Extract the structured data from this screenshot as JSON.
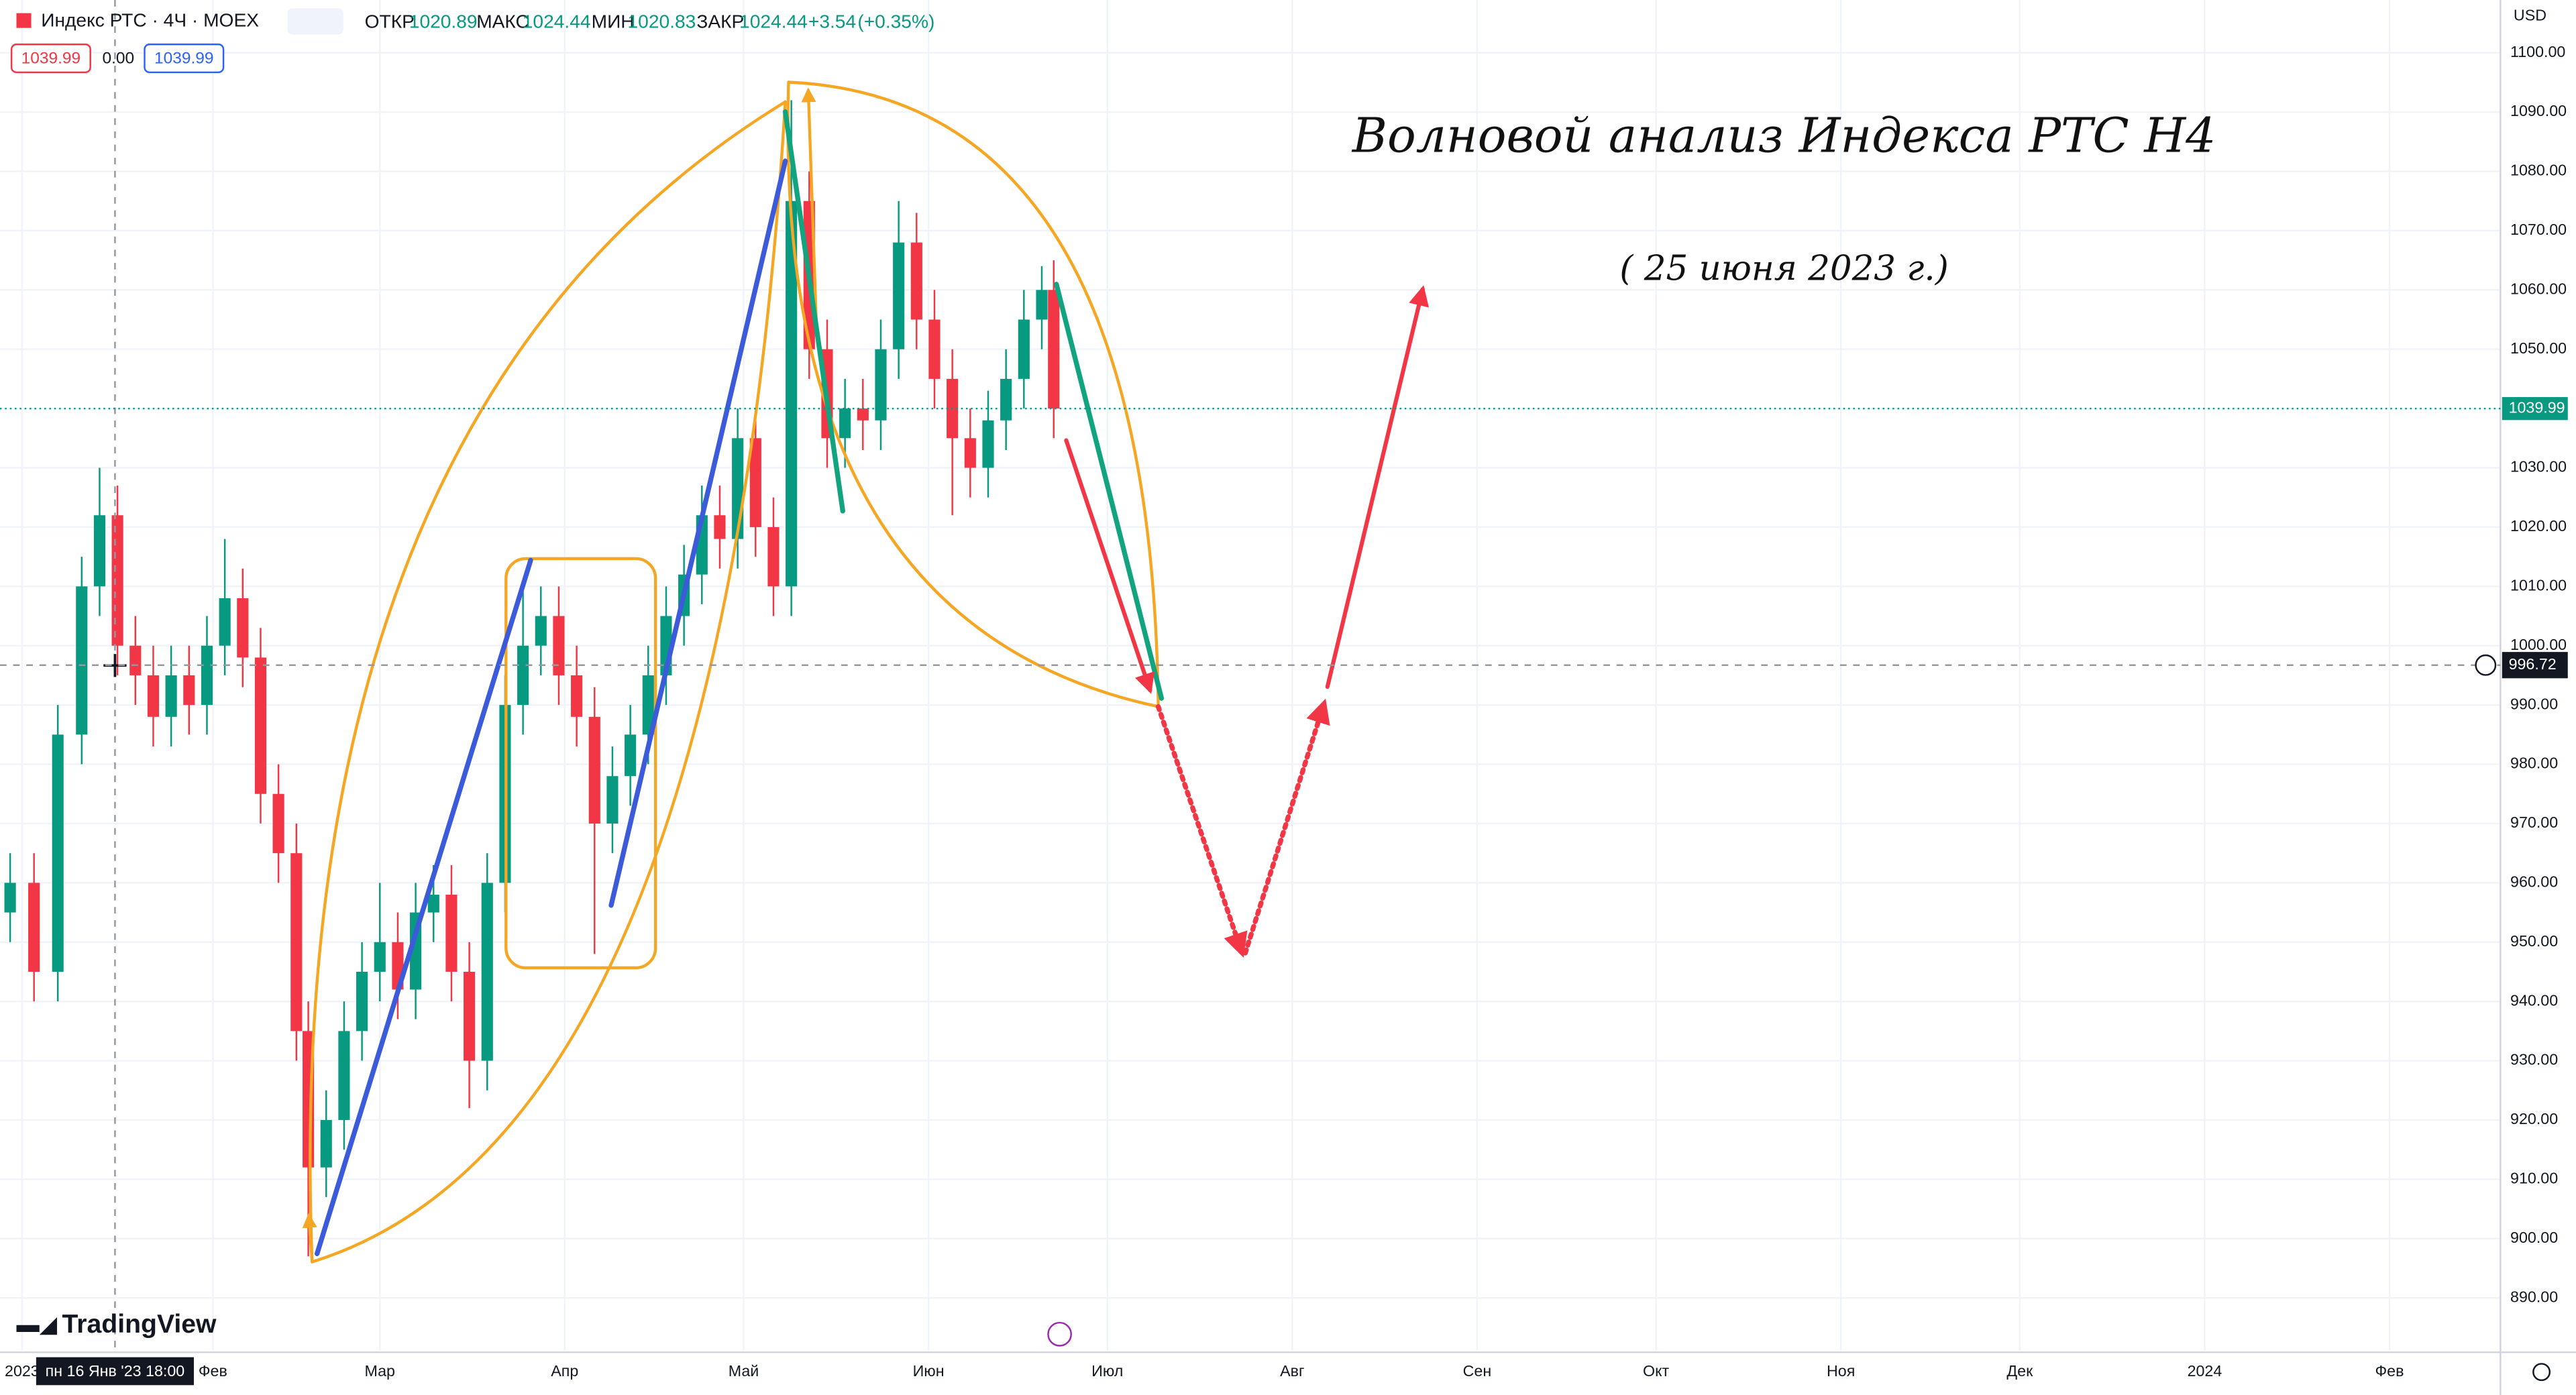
{
  "header": {
    "symbol": "Индекс РТС · 4Ч · MOEX",
    "open_label": "ОТКР",
    "open": 1020.89,
    "high_label": "МАКС",
    "high": 1024.44,
    "low_label": "МИН",
    "low": 1020.83,
    "close_label": "ЗАКР",
    "close": 1024.44,
    "change": "+3.54",
    "change_pct": "(+0.35%)",
    "sell": 1039.99,
    "spread": "0.00",
    "buy": 1039.99
  },
  "currency": "USD",
  "logo": "TradingView",
  "crosshair_time": "пн 16 Янв '23  18:00",
  "chart_data": {
    "type": "candlestick",
    "annotations": [
      "Волновой анализ Индекса РТС Н4",
      "( 25 июня 2023 г.)"
    ],
    "x": [
      -3,
      1,
      5,
      9,
      12,
      15,
      18,
      21,
      24,
      27,
      30,
      33,
      36,
      39,
      42,
      45,
      47,
      50,
      53,
      56,
      59,
      62,
      65,
      68,
      71,
      74,
      77,
      80,
      83,
      86,
      89,
      92,
      95,
      98,
      101,
      104,
      107,
      110,
      113,
      116,
      119,
      122,
      125,
      128,
      131,
      134,
      137,
      140,
      143,
      146,
      149,
      152,
      155,
      158,
      161,
      164,
      167,
      170,
      172
    ],
    "open": [
      955,
      960,
      945,
      985,
      1010,
      1022,
      1000,
      995,
      988,
      995,
      990,
      1000,
      1008,
      998,
      975,
      965,
      935,
      912,
      920,
      935,
      945,
      950,
      942,
      955,
      958,
      945,
      930,
      960,
      990,
      1000,
      1005,
      995,
      988,
      970,
      978,
      985,
      995,
      1005,
      1012,
      1022,
      1018,
      1035,
      1020,
      1010,
      1075,
      1050,
      1035,
      1040,
      1038,
      1050,
      1068,
      1055,
      1045,
      1035,
      1030,
      1038,
      1045,
      1055,
      1060
    ],
    "high": [
      965,
      965,
      990,
      1015,
      1030,
      1027,
      1005,
      1000,
      1000,
      1000,
      1005,
      1018,
      1013,
      1003,
      980,
      970,
      940,
      925,
      940,
      950,
      960,
      955,
      960,
      963,
      963,
      950,
      965,
      995,
      1010,
      1010,
      1010,
      1000,
      993,
      983,
      990,
      1000,
      1010,
      1017,
      1027,
      1027,
      1040,
      1040,
      1025,
      1092,
      1080,
      1055,
      1045,
      1045,
      1055,
      1075,
      1073,
      1060,
      1050,
      1040,
      1043,
      1050,
      1060,
      1064,
      1065
    ],
    "low": [
      950,
      940,
      940,
      980,
      1005,
      995,
      990,
      983,
      983,
      985,
      985,
      995,
      993,
      970,
      960,
      930,
      897,
      907,
      915,
      930,
      940,
      937,
      937,
      950,
      940,
      922,
      925,
      955,
      985,
      995,
      990,
      983,
      948,
      965,
      973,
      980,
      990,
      1000,
      1007,
      1013,
      1013,
      1015,
      1005,
      1005,
      1045,
      1030,
      1030,
      1033,
      1033,
      1045,
      1050,
      1040,
      1022,
      1025,
      1025,
      1033,
      1040,
      1050,
      1035
    ],
    "close": [
      960,
      945,
      985,
      1010,
      1022,
      1000,
      995,
      988,
      995,
      990,
      1000,
      1008,
      998,
      975,
      965,
      935,
      912,
      920,
      935,
      945,
      950,
      942,
      955,
      958,
      945,
      930,
      960,
      990,
      1000,
      1005,
      995,
      988,
      970,
      978,
      985,
      995,
      1005,
      1012,
      1022,
      1018,
      1035,
      1020,
      1010,
      1075,
      1050,
      1035,
      1040,
      1038,
      1050,
      1068,
      1055,
      1045,
      1035,
      1030,
      1038,
      1045,
      1055,
      1060,
      1040
    ],
    "up_color": "#089981",
    "down_color": "#f23645",
    "last_price": {
      "value": 1039.99,
      "label": "1039.99",
      "color": "#089981"
    },
    "crosshair_price": {
      "value": 996.72,
      "label": "996.72"
    },
    "xlim": [
      -4.7,
      414.6
    ],
    "xticks": [
      {
        "value": -1,
        "label": "2023"
      },
      {
        "value": 31,
        "label": "Фев"
      },
      {
        "value": 59,
        "label": "Мар"
      },
      {
        "value": 90,
        "label": "Апр"
      },
      {
        "value": 120,
        "label": "Май"
      },
      {
        "value": 151,
        "label": "Июн"
      },
      {
        "value": 181,
        "label": "Июл"
      },
      {
        "value": 212,
        "label": "Авг"
      },
      {
        "value": 243,
        "label": "Сен"
      },
      {
        "value": 273,
        "label": "Окт"
      },
      {
        "value": 304,
        "label": "Ноя"
      },
      {
        "value": 334,
        "label": "Дек"
      },
      {
        "value": 365,
        "label": "2024"
      },
      {
        "value": 396,
        "label": "Фев"
      }
    ],
    "ylim": [
      881.1,
      1108.9
    ],
    "yticks": [
      {
        "value": 890,
        "label": "890.00"
      },
      {
        "value": 900,
        "label": "900.00"
      },
      {
        "value": 910,
        "label": "910.00"
      },
      {
        "value": 920,
        "label": "920.00"
      },
      {
        "value": 930,
        "label": "930.00"
      },
      {
        "value": 940,
        "label": "940.00"
      },
      {
        "value": 950,
        "label": "950.00"
      },
      {
        "value": 960,
        "label": "960.00"
      },
      {
        "value": 970,
        "label": "970.00"
      },
      {
        "value": 980,
        "label": "980.00"
      },
      {
        "value": 990,
        "label": "990.00"
      },
      {
        "value": 1000,
        "label": "1000.00"
      },
      {
        "value": 1010,
        "label": "1010.00"
      },
      {
        "value": 1020,
        "label": "1020.00"
      },
      {
        "value": 1030,
        "label": "1030.00"
      },
      {
        "value": 1040,
        "label": "1040.00"
      },
      {
        "value": 1050,
        "label": "1050.00"
      },
      {
        "value": 1060,
        "label": "1060.00"
      },
      {
        "value": 1070,
        "label": "1070.00"
      },
      {
        "value": 1080,
        "label": "1080.00"
      },
      {
        "value": 1090,
        "label": "1090.00"
      },
      {
        "value": 1100,
        "label": "1100.00"
      }
    ],
    "grid": true
  }
}
